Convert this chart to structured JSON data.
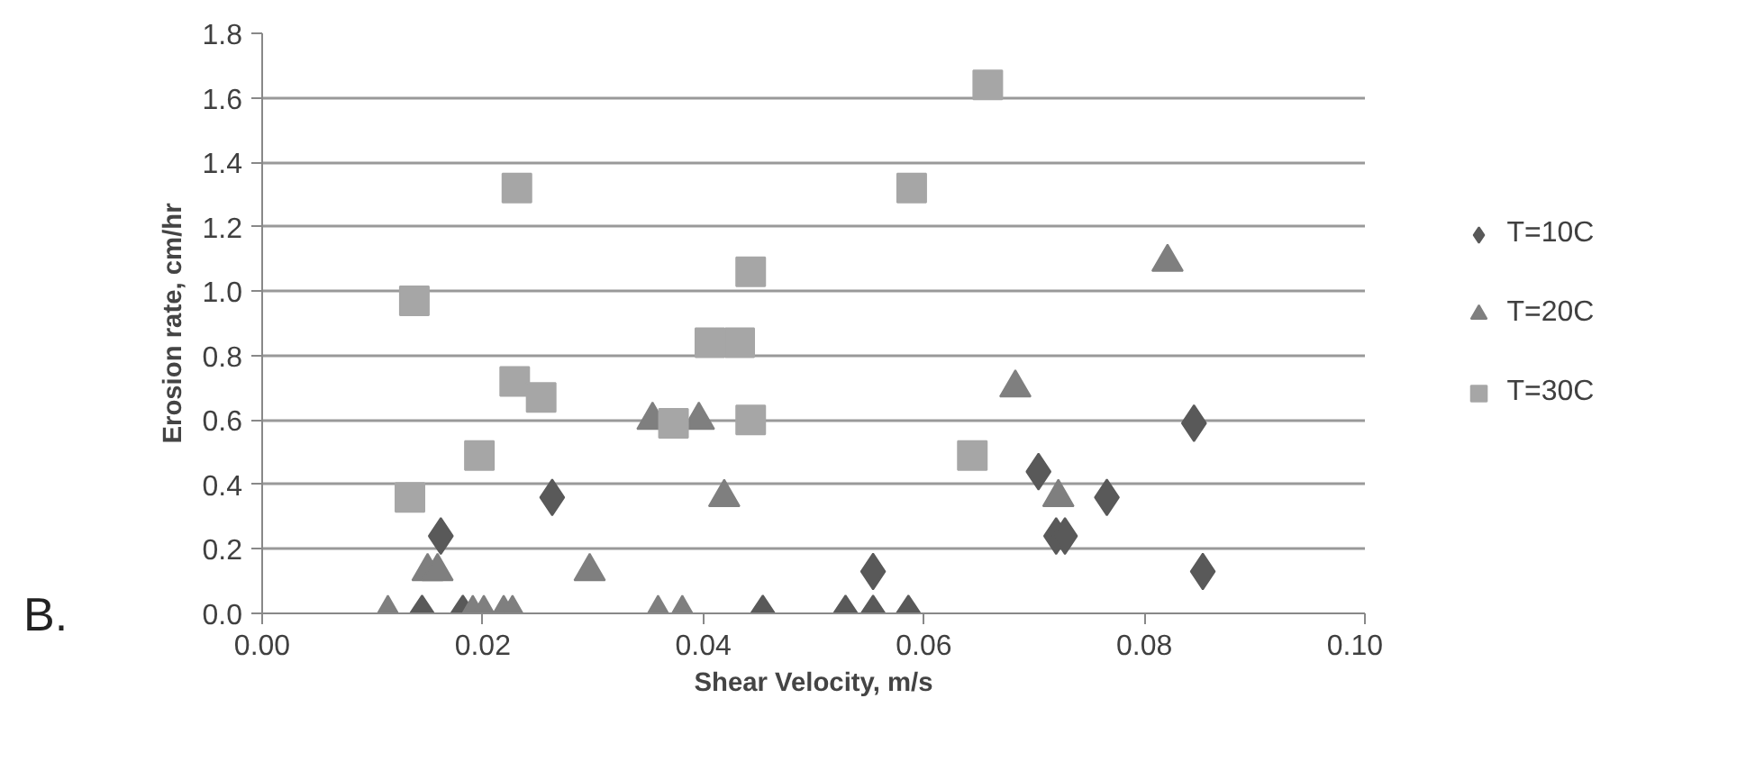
{
  "chart_data": {
    "type": "scatter",
    "xlabel": "Shear Velocity, m/s",
    "ylabel": "Erosion rate, cm/hr",
    "xlim": [
      0,
      0.1
    ],
    "xticks": [
      {
        "value": 0,
        "label": "0.00"
      },
      {
        "value": 0.02,
        "label": "0.02"
      },
      {
        "value": 0.04,
        "label": "0.04"
      },
      {
        "value": 0.06,
        "label": "0.06"
      },
      {
        "value": 0.08,
        "label": "0.08"
      },
      {
        "value": 0.1,
        "label": "0.10"
      }
    ],
    "ylim": [
      0,
      1.8
    ],
    "yticks": [
      {
        "value": 0,
        "label": "0.0"
      },
      {
        "value": 0.2,
        "label": "0.2"
      },
      {
        "value": 0.4,
        "label": "0.4"
      },
      {
        "value": 0.6,
        "label": "0.6"
      },
      {
        "value": 0.8,
        "label": "0.8"
      },
      {
        "value": 1.0,
        "label": "1.0"
      },
      {
        "value": 1.2,
        "label": "1.2"
      },
      {
        "value": 1.4,
        "label": "1.4"
      },
      {
        "value": 1.6,
        "label": "1.6"
      },
      {
        "value": 1.8,
        "label": "1.8"
      }
    ],
    "grid": "y",
    "legend": "right",
    "annotations": [
      "B."
    ],
    "series": [
      {
        "name": "T=10C",
        "color": "#595959",
        "marker": "diamond",
        "x": [
          0.0145,
          0.0162,
          0.0182,
          0.0263,
          0.0454,
          0.0529,
          0.0554,
          0.0554,
          0.0586,
          0.0704,
          0.072,
          0.0728,
          0.0766,
          0.0845,
          0.0853
        ],
        "values": [
          0,
          0.24,
          0,
          0.36,
          0,
          0,
          0,
          0.13,
          0,
          0.44,
          0.24,
          0.24,
          0.36,
          0.59,
          0.13
        ]
      },
      {
        "name": "T=20C",
        "color": "#7f7f7f",
        "marker": "triangle",
        "x": [
          0.0114,
          0.015,
          0.0159,
          0.0191,
          0.0201,
          0.0219,
          0.0227,
          0.0297,
          0.0354,
          0.0359,
          0.0381,
          0.0396,
          0.0419,
          0.0683,
          0.0722,
          0.0821
        ],
        "values": [
          0,
          0.13,
          0.13,
          0,
          0,
          0,
          0,
          0.13,
          0.6,
          0,
          0,
          0.6,
          0.36,
          0.7,
          0.36,
          1.09
        ]
      },
      {
        "name": "T=30C",
        "color": "#a6a6a6",
        "marker": "square",
        "x": [
          0.0134,
          0.0138,
          0.0197,
          0.0229,
          0.0231,
          0.0253,
          0.0373,
          0.0406,
          0.0433,
          0.0443,
          0.0443,
          0.0589,
          0.0644,
          0.0658
        ],
        "values": [
          0.36,
          0.97,
          0.49,
          0.72,
          1.32,
          0.67,
          0.59,
          0.84,
          0.84,
          1.06,
          0.6,
          1.32,
          0.49,
          1.64
        ]
      }
    ]
  }
}
